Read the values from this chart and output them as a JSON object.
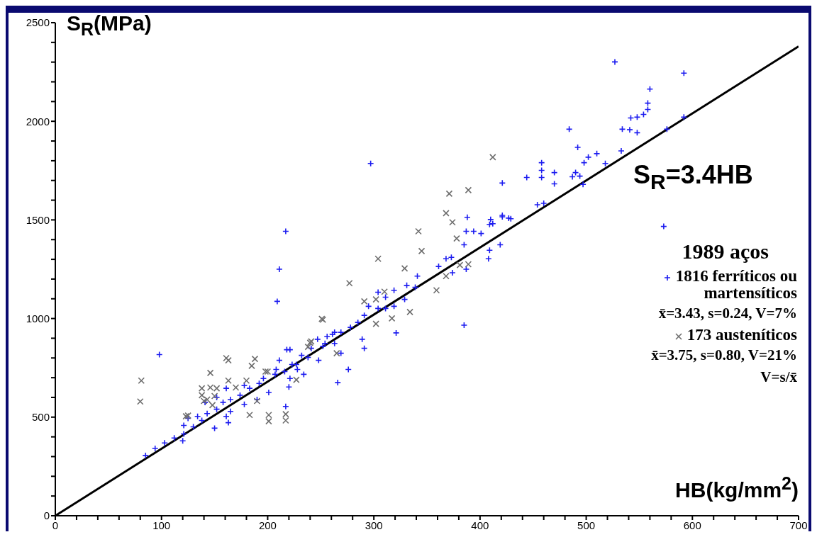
{
  "chart_data": {
    "type": "scatter",
    "xlabel": "HB(kg/mm$^{2}$)",
    "ylabel": "S$_{R}$(MPa)",
    "legend_title": "1989 aços",
    "annotations": [
      "x̄=3.43, s=0.24, V=7%",
      "x̄=3.75, s=0.80, V=21%",
      "V=s/x̄"
    ],
    "xlim": [
      0,
      700
    ],
    "ylim": [
      0,
      2500
    ],
    "xticks": [
      0,
      {
        "value": 20,
        "label": null
      },
      {
        "value": 40,
        "label": null
      },
      {
        "value": 60,
        "label": null
      },
      {
        "value": 80,
        "label": null
      },
      100,
      {
        "value": 120,
        "label": null
      },
      {
        "value": 140,
        "label": null
      },
      {
        "value": 160,
        "label": null
      },
      {
        "value": 180,
        "label": null
      },
      200,
      {
        "value": 220,
        "label": null
      },
      {
        "value": 240,
        "label": null
      },
      {
        "value": 260,
        "label": null
      },
      {
        "value": 280,
        "label": null
      },
      300,
      {
        "value": 320,
        "label": null
      },
      {
        "value": 340,
        "label": null
      },
      {
        "value": 360,
        "label": null
      },
      {
        "value": 380,
        "label": null
      },
      400,
      {
        "value": 420,
        "label": null
      },
      {
        "value": 440,
        "label": null
      },
      {
        "value": 460,
        "label": null
      },
      {
        "value": 480,
        "label": null
      },
      500,
      {
        "value": 520,
        "label": null
      },
      {
        "value": 540,
        "label": null
      },
      {
        "value": 560,
        "label": null
      },
      {
        "value": 580,
        "label": null
      },
      600,
      {
        "value": 620,
        "label": null
      },
      {
        "value": 640,
        "label": null
      },
      {
        "value": 660,
        "label": null
      },
      {
        "value": 680,
        "label": null
      },
      700
    ],
    "yticks": [
      0,
      {
        "value": 100,
        "label": null
      },
      {
        "value": 200,
        "label": null
      },
      {
        "value": 300,
        "label": null
      },
      {
        "value": 400,
        "label": null
      },
      500,
      {
        "value": 600,
        "label": null
      },
      {
        "value": 700,
        "label": null
      },
      {
        "value": 800,
        "label": null
      },
      {
        "value": 900,
        "label": null
      },
      1000,
      {
        "value": 1100,
        "label": null
      },
      {
        "value": 1200,
        "label": null
      },
      {
        "value": 1300,
        "label": null
      },
      {
        "value": 1400,
        "label": null
      },
      1500,
      {
        "value": 1600,
        "label": null
      },
      {
        "value": 1700,
        "label": null
      },
      {
        "value": 1800,
        "label": null
      },
      {
        "value": 1900,
        "label": null
      },
      2000,
      {
        "value": 2100,
        "label": null
      },
      {
        "value": 2200,
        "label": null
      },
      {
        "value": 2300,
        "label": null
      },
      {
        "value": 2400,
        "label": null
      },
      2500
    ],
    "legend": "right",
    "grid": false,
    "series": [
      {
        "name": "1816 ferríticos ou martensíticos",
        "color": "#1c1cf0",
        "marker": "cross",
        "x": [
          98,
          217,
          211,
          209,
          297,
          385,
          573,
          527,
          592,
          560,
          558,
          558,
          554,
          548,
          542,
          484,
          534,
          541,
          548,
          592,
          576,
          492,
          498,
          502,
          510,
          518,
          533,
          490,
          494,
          497,
          487,
          444,
          458,
          458,
          470,
          470,
          458,
          421,
          454,
          460,
          429,
          421,
          412,
          388,
          410,
          421,
          427,
          409,
          387,
          394,
          401,
          385,
          409,
          408,
          419,
          368,
          373,
          387,
          374,
          361,
          341,
          339,
          331,
          329,
          319,
          319,
          311,
          311,
          304,
          304,
          321,
          295,
          291,
          285,
          278,
          269,
          263,
          256,
          254,
          263,
          289,
          291,
          276,
          269,
          247,
          241,
          232,
          221,
          211,
          223,
          208,
          228,
          266,
          220,
          217,
          163,
          150,
          85,
          94,
          103,
          112,
          121,
          120,
          130,
          138,
          143,
          152,
          158,
          165,
          174,
          183,
          192,
          196,
          207,
          216,
          227,
          238,
          252,
          261,
          165,
          161,
          178,
          190,
          201,
          221,
          234,
          178,
          161,
          152,
          141,
          134,
          125,
          121,
          248,
          218
        ],
        "values": [
          817,
          1442,
          1250,
          1087,
          1786,
          966,
          1467,
          2301,
          2244,
          2163,
          2092,
          2060,
          2035,
          2021,
          2017,
          1960,
          1960,
          1957,
          1942,
          2021,
          1960,
          1868,
          1790,
          1818,
          1836,
          1786,
          1850,
          1740,
          1722,
          1680,
          1719,
          1715,
          1751,
          1715,
          1740,
          1683,
          1790,
          1687,
          1577,
          1584,
          1506,
          1516,
          1481,
          1513,
          1502,
          1523,
          1509,
          1477,
          1442,
          1442,
          1431,
          1374,
          1346,
          1303,
          1374,
          1303,
          1310,
          1250,
          1232,
          1264,
          1215,
          1158,
          1168,
          1097,
          1143,
          1062,
          1108,
          1051,
          1133,
          1051,
          927,
          1062,
          1016,
          980,
          955,
          930,
          930,
          909,
          874,
          874,
          895,
          849,
          742,
          824,
          895,
          849,
          813,
          842,
          788,
          767,
          742,
          742,
          675,
          653,
          554,
          472,
          444,
          305,
          341,
          369,
          394,
          415,
          380,
          451,
          483,
          518,
          540,
          575,
          589,
          611,
          646,
          671,
          696,
          717,
          731,
          767,
          803,
          859,
          920,
          529,
          504,
          565,
          589,
          625,
          696,
          717,
          660,
          646,
          600,
          575,
          504,
          494,
          458,
          788,
          842
        ]
      },
      {
        "name": "173 austeníticos",
        "color": "#6e6e6e",
        "marker": "cross",
        "x": [
          81,
          80,
          123,
          125,
          146,
          146,
          138,
          140,
          150,
          148,
          152,
          163,
          161,
          163,
          170,
          180,
          185,
          188,
          190,
          183,
          201,
          201,
          217,
          217,
          198,
          227,
          240,
          238,
          252,
          143,
          138,
          412,
          371,
          389,
          368,
          374,
          378,
          342,
          345,
          304,
          329,
          277,
          251,
          291,
          302,
          310,
          334,
          317,
          302,
          359,
          381,
          389,
          368,
          241,
          265,
          200
        ],
        "values": [
          685,
          579,
          504,
          508,
          724,
          650,
          611,
          582,
          607,
          561,
          646,
          788,
          799,
          685,
          650,
          685,
          760,
          795,
          582,
          511,
          511,
          479,
          515,
          483,
          731,
          689,
          877,
          856,
          994,
          589,
          646,
          1818,
          1633,
          1651,
          1534,
          1488,
          1406,
          1442,
          1342,
          1303,
          1254,
          1179,
          998,
          1087,
          1097,
          1136,
          1033,
          1001,
          973,
          1143,
          1271,
          1275,
          1215,
          884,
          824,
          731
        ]
      },
      {
        "type": "line",
        "name": "S$_{R}$=3.4HB",
        "color": "#000000",
        "x": [
          0,
          700
        ],
        "values": [
          0,
          2380
        ]
      }
    ]
  }
}
